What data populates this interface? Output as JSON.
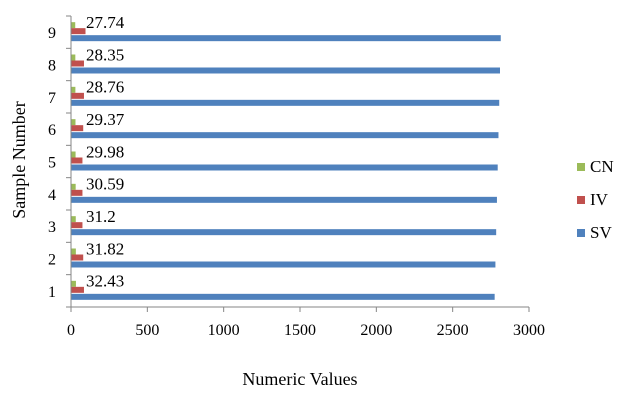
{
  "chart_data": {
    "type": "bar",
    "orientation": "horizontal",
    "categories": [
      "1",
      "2",
      "3",
      "4",
      "5",
      "6",
      "7",
      "8",
      "9"
    ],
    "series": [
      {
        "name": "SV",
        "color": "#4F81BD",
        "values": [
          2775,
          2780,
          2785,
          2790,
          2795,
          2800,
          2805,
          2810,
          2815
        ]
      },
      {
        "name": "IV",
        "color": "#C0504D",
        "values": [
          85,
          80,
          75,
          75,
          75,
          80,
          85,
          85,
          95
        ]
      },
      {
        "name": "CN",
        "color": "#9BBB59",
        "values": [
          32.43,
          31.82,
          31.2,
          30.59,
          29.98,
          29.37,
          28.76,
          28.35,
          27.74
        ]
      }
    ],
    "data_labels": [
      "32.43",
      "31.82",
      "31.2",
      "30.59",
      "29.98",
      "29.37",
      "28.76",
      "28.35",
      "27.74"
    ],
    "xlabel": "Numeric Values",
    "ylabel": "Sample Number",
    "xlim": [
      0,
      3000
    ],
    "xticks": [
      "0",
      "500",
      "1000",
      "1500",
      "2000",
      "2500",
      "3000"
    ],
    "legend": {
      "placement": "right",
      "entries": [
        {
          "label": "CN",
          "color": "#9BBB59"
        },
        {
          "label": "IV",
          "color": "#C0504D"
        },
        {
          "label": "SV",
          "color": "#4F81BD"
        }
      ]
    },
    "grid": false
  }
}
